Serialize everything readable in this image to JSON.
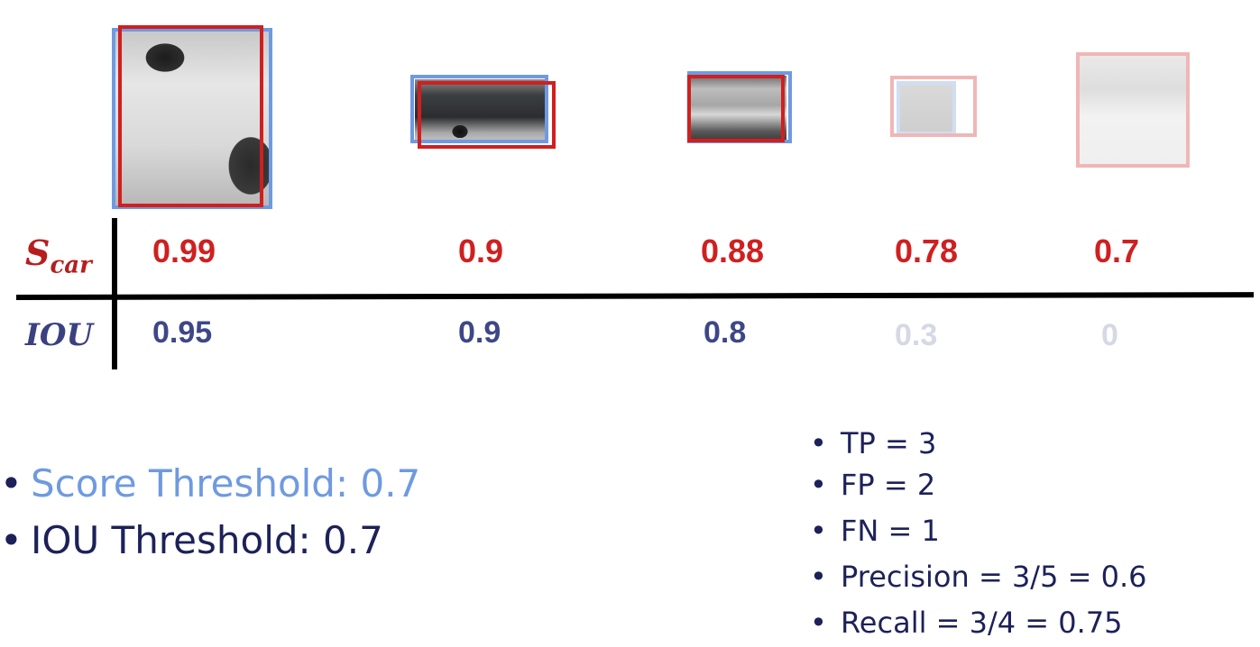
{
  "detections": [
    {
      "score": "0.99",
      "iou": "0.95",
      "dim": false
    },
    {
      "score": "0.9",
      "iou": "0.9",
      "dim": false
    },
    {
      "score": "0.88",
      "iou": "0.8",
      "dim": false
    },
    {
      "score": "0.78",
      "iou": "0.3",
      "dim": true
    },
    {
      "score": "0.7",
      "iou": "0",
      "dim": true
    }
  ],
  "row_labels": {
    "score_main": "S",
    "score_sub": "car",
    "iou": "IOU"
  },
  "thresholds": [
    {
      "text": "Score Threshold: 0.7",
      "color": "#6f9ae0"
    },
    {
      "text": "IOU Threshold: 0.7",
      "color": "#1d2159"
    }
  ],
  "metrics": [
    "TP = 3",
    "FP = 2",
    "FN = 1",
    "Precision = 3/5 = 0.6",
    "Recall = 3/4 = 0.75"
  ],
  "colors": {
    "ground_truth_box": "#6f9ae0",
    "prediction_box": "#d11f1f",
    "score_text": "#cf2020",
    "iou_text": "#3e4786"
  }
}
